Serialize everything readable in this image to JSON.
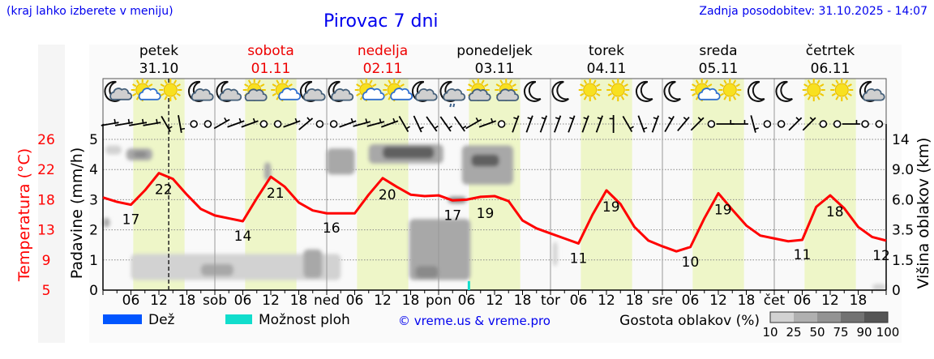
{
  "header": {
    "hint": "(kraj lahko izberete v meniju)",
    "title": "Pirovac 7 dni",
    "updated": "Zadnja posodobitev: 31.10.2025 - 14:07"
  },
  "chart_data": {
    "type": "line",
    "title": "Pirovac 7 dni",
    "days": [
      {
        "name": "petek",
        "date": "31.10",
        "weekend": false,
        "short": ""
      },
      {
        "name": "sobota",
        "date": "01.11",
        "weekend": true,
        "short": "sob"
      },
      {
        "name": "nedelja",
        "date": "02.11",
        "weekend": true,
        "short": "ned"
      },
      {
        "name": "ponedeljek",
        "date": "03.11",
        "weekend": false,
        "short": "pon"
      },
      {
        "name": "torek",
        "date": "04.11",
        "weekend": false,
        "short": "tor"
      },
      {
        "name": "sreda",
        "date": "05.11",
        "weekend": false,
        "short": "sre"
      },
      {
        "name": "četrtek",
        "date": "06.11",
        "weekend": false,
        "short": "čet"
      }
    ],
    "hour_ticks": [
      "06",
      "12",
      "18"
    ],
    "current_time_hour": 14.1,
    "daylight_hours": [
      6.5,
      17.5
    ],
    "axes": {
      "precip": {
        "label": "Padavine (mm/h)",
        "ticks": [
          "0",
          "1",
          "2",
          "3",
          "4",
          "5"
        ],
        "ylim": [
          0,
          5
        ]
      },
      "temperature": {
        "label": "Temperatura (°C)",
        "ticks": [
          "5",
          "9",
          "13",
          "18",
          "22",
          "26"
        ],
        "ylim": [
          5,
          26
        ]
      },
      "cloud_height": {
        "label": "Višina oblakov (km)",
        "ticks": [
          "0",
          "1.5",
          "3.5",
          "6.0",
          "9.0",
          "14"
        ]
      }
    },
    "temperature_series": {
      "name": "Temperatura",
      "color": "#ff0000",
      "step_hours": 3,
      "values": [
        17.9,
        17.3,
        16.9,
        18.9,
        21.3,
        20.5,
        18.3,
        16.3,
        15.4,
        15.0,
        14.6,
        17.8,
        20.8,
        19.4,
        17.2,
        16.1,
        15.7,
        15.7,
        15.7,
        18.3,
        20.6,
        19.4,
        18.3,
        18.1,
        18.2,
        17.5,
        17.6,
        18.0,
        18.1,
        17.4,
        14.7,
        13.6,
        12.9,
        12.2,
        11.5,
        15.5,
        18.9,
        17.0,
        13.8,
        11.9,
        11.1,
        10.4,
        11.0,
        15.0,
        18.5,
        16.2,
        14.0,
        12.6,
        12.2,
        11.8,
        12.0,
        16.6,
        18.2,
        16.4,
        13.8,
        12.4,
        11.9
      ]
    },
    "temperature_labels": [
      {
        "hour": 6,
        "value": "17",
        "pos": "below"
      },
      {
        "hour": 13,
        "value": "22",
        "pos": "below"
      },
      {
        "hour": 30,
        "value": "14",
        "pos": "below"
      },
      {
        "hour": 37,
        "value": "21",
        "pos": "below"
      },
      {
        "hour": 49,
        "value": "16",
        "pos": "below"
      },
      {
        "hour": 61,
        "value": "20",
        "pos": "below"
      },
      {
        "hour": 75,
        "value": "17",
        "pos": "below"
      },
      {
        "hour": 82,
        "value": "19",
        "pos": "below"
      },
      {
        "hour": 102,
        "value": "11",
        "pos": "below"
      },
      {
        "hour": 109,
        "value": "19",
        "pos": "below"
      },
      {
        "hour": 126,
        "value": "10",
        "pos": "below"
      },
      {
        "hour": 133,
        "value": "19",
        "pos": "below"
      },
      {
        "hour": 150,
        "value": "11",
        "pos": "below"
      },
      {
        "hour": 157,
        "value": "18",
        "pos": "below"
      },
      {
        "hour": 168,
        "value": "12",
        "pos": "below"
      }
    ],
    "cloud_patches": [
      {
        "h": [
          0.5,
          4
        ],
        "km": [
          11.5,
          13
        ],
        "density": 25
      },
      {
        "h": [
          5,
          10.6
        ],
        "km": [
          10.5,
          12.5
        ],
        "density": 50
      },
      {
        "h": [
          6.5,
          9.5
        ],
        "km": [
          11,
          12
        ],
        "density": 75
      },
      {
        "h": [
          0,
          1.5
        ],
        "km": [
          3.7,
          4.5
        ],
        "density": 50
      },
      {
        "h": [
          6,
          51
        ],
        "km": [
          0.5,
          1.9
        ],
        "density": 25
      },
      {
        "h": [
          21,
          28
        ],
        "km": [
          0.7,
          1.3
        ],
        "density": 50
      },
      {
        "h": [
          13,
          16
        ],
        "km": [
          0.8,
          1.6
        ],
        "density": 25
      },
      {
        "h": [
          34.6,
          36
        ],
        "km": [
          7.9,
          10.2
        ],
        "density": 50
      },
      {
        "h": [
          48,
          54
        ],
        "km": [
          8.5,
          12.5
        ],
        "density": 50
      },
      {
        "h": [
          43,
          47
        ],
        "km": [
          0.6,
          2.2
        ],
        "density": 50
      },
      {
        "h": [
          57,
          73
        ],
        "km": [
          10,
          13.2
        ],
        "density": 50
      },
      {
        "h": [
          60,
          71
        ],
        "km": [
          10.8,
          12.8
        ],
        "density": 90
      },
      {
        "h": [
          77,
          88
        ],
        "km": [
          7.5,
          13
        ],
        "density": 50
      },
      {
        "h": [
          79,
          85
        ],
        "km": [
          9.5,
          11.5
        ],
        "density": 90
      },
      {
        "h": [
          65.7,
          78.8
        ],
        "km": [
          0.5,
          4.4
        ],
        "density": 50
      },
      {
        "h": [
          67,
          72
        ],
        "km": [
          0.6,
          1.2
        ],
        "density": 75
      },
      {
        "h": [
          74,
          78
        ],
        "km": [
          5.7,
          6.3
        ],
        "density": 75
      },
      {
        "h": [
          96.5,
          97.5
        ],
        "km": [
          1.2,
          2.7
        ],
        "density": 25
      },
      {
        "h": [
          165,
          168
        ],
        "km": [
          0,
          0.3
        ],
        "density": 25
      }
    ],
    "showers": [
      {
        "hour": 78.5,
        "mmh": 0.3
      }
    ],
    "weather_icons": [
      "moon-cloud-light",
      "sun-cloud-light",
      "sun",
      "moon-cloud",
      "moon-cloud",
      "sun-cloud",
      "sun-cloud-light",
      "moon-cloud",
      "moon-cloud",
      "sun-cloud-light",
      "sun-cloud-light",
      "moon-cloud",
      "moon-cloud-drizzle",
      "sun-cloud",
      "sun-cloud",
      "moon",
      "moon",
      "sun",
      "sun",
      "moon",
      "moon",
      "sun-cloud-light",
      "sun",
      "moon",
      "moon",
      "sun",
      "sun",
      "moon-cloud"
    ],
    "wind_directions": [
      80,
      80,
      80,
      80,
      150,
      170,
      null,
      null,
      60,
      70,
      70,
      null,
      null,
      70,
      50,
      null,
      null,
      70,
      75,
      75,
      70,
      150,
      155,
      145,
      145,
      145,
      60,
      70,
      null,
      20,
      20,
      20,
      20,
      20,
      20,
      20,
      0,
      150,
      160,
      20,
      30,
      40,
      45,
      null,
      90,
      90,
      165,
      null,
      null,
      45,
      45,
      null,
      null,
      90,
      null,
      null
    ],
    "legend": {
      "rain": {
        "label": "Dež",
        "color": "#0055ff"
      },
      "showers": {
        "label": "Možnost ploh",
        "color": "#11ddcc"
      },
      "copyright": "© vreme.us & vreme.pro",
      "cloud_density": {
        "label": "Gostota oblakov (%)",
        "ticks": [
          "10",
          "25",
          "50",
          "75",
          "90",
          "100"
        ],
        "colors": [
          "#d2d2d2",
          "#b0b0b0",
          "#939393",
          "#727272",
          "#555555"
        ]
      }
    }
  }
}
